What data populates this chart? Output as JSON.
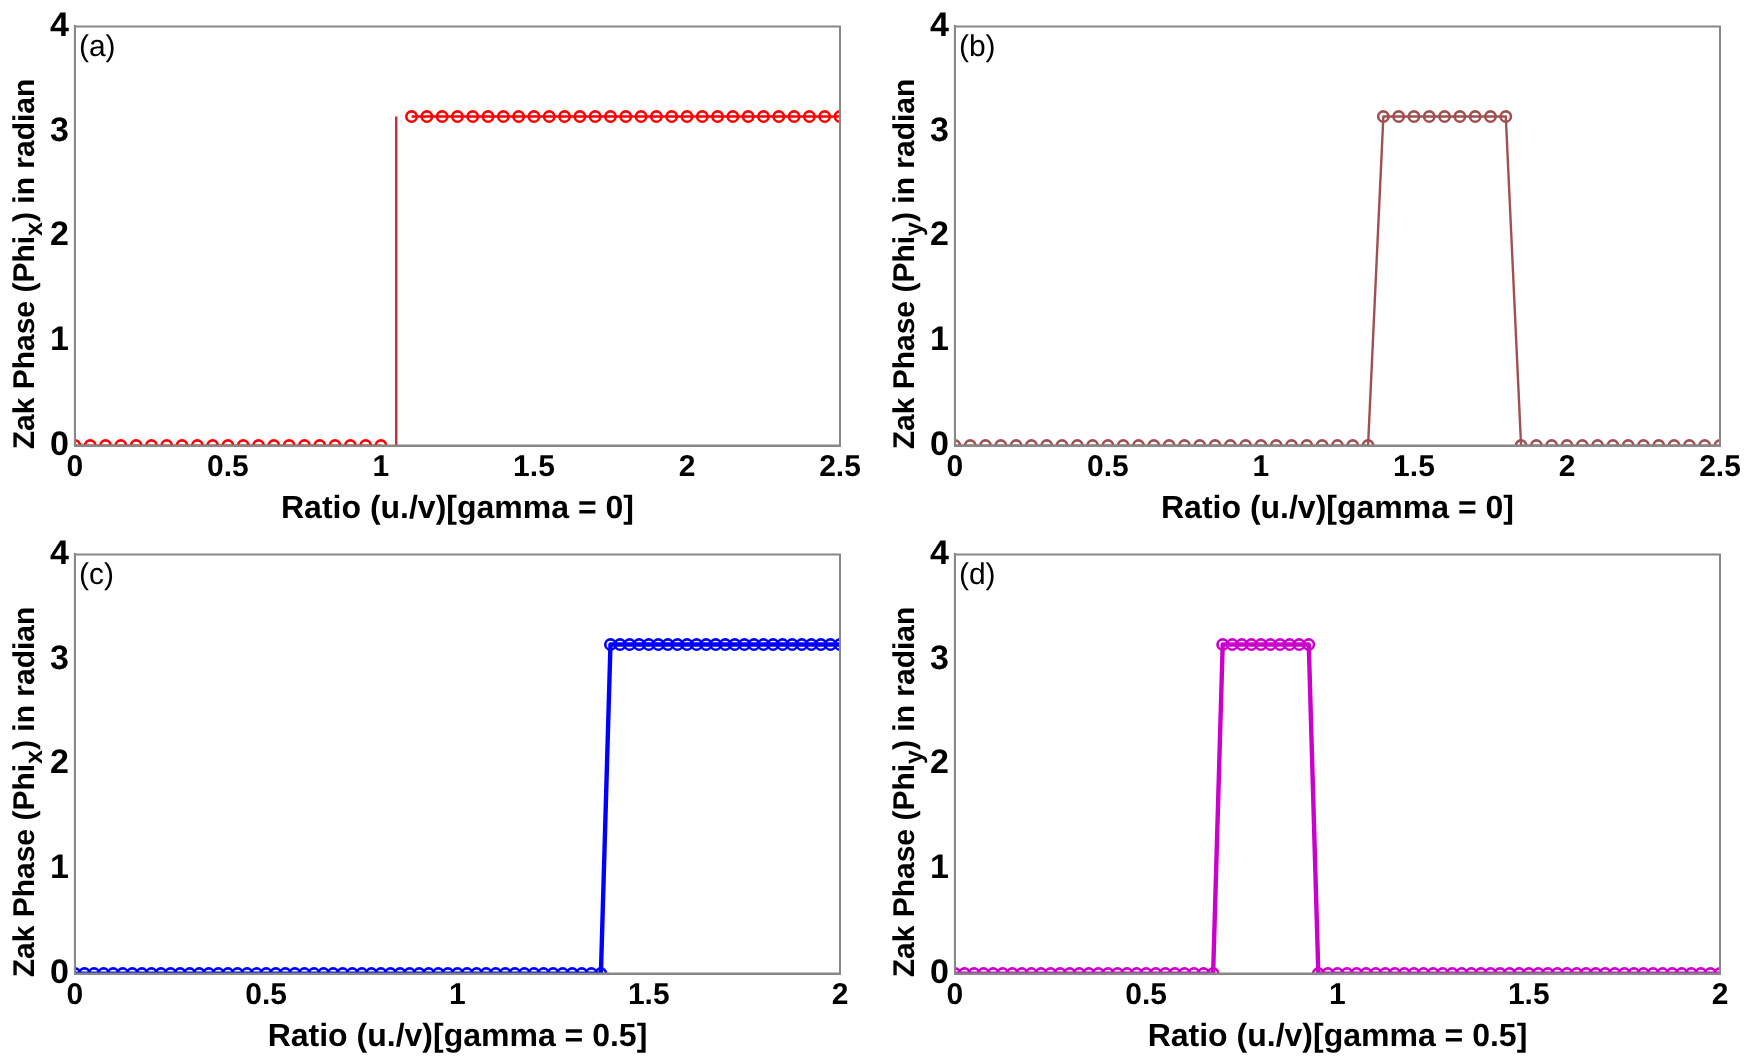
{
  "chart_data": [
    {
      "type": "line",
      "xlabel": "Ratio (u./v)[gamma = 0]",
      "ylabel": "Zak Phase (Phi$_{x}$) in radian",
      "annotations": [
        "(a)"
      ],
      "grid": false,
      "legend": false,
      "xlim": [
        0,
        2.5
      ],
      "xticks": [
        0,
        0.5,
        1,
        1.5,
        2,
        2.5
      ],
      "ylim": [
        0,
        4
      ],
      "yticks": [
        0,
        1,
        2,
        3,
        4
      ],
      "x": [
        0,
        0.05,
        0.1,
        0.15,
        0.2,
        0.25,
        0.3,
        0.35,
        0.4,
        0.45,
        0.5,
        0.55,
        0.6,
        0.65,
        0.7,
        0.75,
        0.8,
        0.85,
        0.9,
        0.95,
        1,
        1.05,
        1.1,
        1.15,
        1.2,
        1.25,
        1.3,
        1.35,
        1.4,
        1.45,
        1.5,
        1.55,
        1.6,
        1.65,
        1.7,
        1.75,
        1.8,
        1.85,
        1.9,
        1.95,
        2,
        2.05,
        2.1,
        2.15,
        2.2,
        2.25,
        2.3,
        2.35,
        2.4,
        2.45,
        2.5
      ],
      "series": [
        {
          "color": "#ff0000",
          "marker": "circle",
          "line_style": "solid",
          "values": [
            0,
            0,
            0,
            0,
            0,
            0,
            0,
            0,
            0,
            0,
            0,
            0,
            0,
            0,
            0,
            0,
            0,
            0,
            0,
            0,
            0,
            null,
            3.14,
            3.14,
            3.14,
            3.14,
            3.14,
            3.14,
            3.14,
            3.14,
            3.14,
            3.14,
            3.14,
            3.14,
            3.14,
            3.14,
            3.14,
            3.14,
            3.14,
            3.14,
            3.14,
            3.14,
            3.14,
            3.14,
            3.14,
            3.14,
            3.14,
            3.14,
            3.14,
            3.14,
            3.14
          ]
        },
        {
          "color": "#c03030",
          "marker": "none",
          "line_style": "solid",
          "x": [
            1.05,
            1.05
          ],
          "values": [
            0,
            3.14
          ]
        }
      ]
    },
    {
      "type": "line",
      "xlabel": "Ratio (u./v)[gamma = 0]",
      "ylabel": "Zak Phase (Phi$_{y}$) in radian",
      "annotations": [
        "(b)"
      ],
      "grid": false,
      "legend": false,
      "xlim": [
        0,
        2.5
      ],
      "xticks": [
        0,
        0.5,
        1,
        1.5,
        2,
        2.5
      ],
      "ylim": [
        0,
        4
      ],
      "yticks": [
        0,
        1,
        2,
        3,
        4
      ],
      "x": [
        0,
        0.05,
        0.1,
        0.15,
        0.2,
        0.25,
        0.3,
        0.35,
        0.4,
        0.45,
        0.5,
        0.55,
        0.6,
        0.65,
        0.7,
        0.75,
        0.8,
        0.85,
        0.9,
        0.95,
        1,
        1.05,
        1.1,
        1.15,
        1.2,
        1.25,
        1.3,
        1.35,
        1.4,
        1.45,
        1.5,
        1.55,
        1.6,
        1.65,
        1.7,
        1.75,
        1.8,
        1.85,
        1.9,
        1.95,
        2,
        2.05,
        2.1,
        2.15,
        2.2,
        2.25,
        2.3,
        2.35,
        2.4,
        2.45,
        2.5
      ],
      "series": [
        {
          "color": "#a05050",
          "marker": "circle",
          "line_style": "solid",
          "values": [
            0,
            0,
            0,
            0,
            0,
            0,
            0,
            0,
            0,
            0,
            0,
            0,
            0,
            0,
            0,
            0,
            0,
            0,
            0,
            0,
            0,
            0,
            0,
            0,
            0,
            0,
            0,
            0,
            3.14,
            3.14,
            3.14,
            3.14,
            3.14,
            3.14,
            3.14,
            3.14,
            3.14,
            0,
            0,
            0,
            0,
            0,
            0,
            0,
            0,
            0,
            0,
            0,
            0,
            0,
            0
          ]
        }
      ]
    },
    {
      "type": "line",
      "xlabel": "Ratio (u./v)[gamma = 0.5]",
      "ylabel": "Zak Phase (Phi$_{x}$) in radian",
      "annotations": [
        "(c)"
      ],
      "grid": false,
      "legend": false,
      "xlim": [
        0,
        2
      ],
      "xticks": [
        0,
        0.5,
        1,
        1.5,
        2
      ],
      "ylim": [
        0,
        4
      ],
      "yticks": [
        0,
        1,
        2,
        3,
        4
      ],
      "x": [
        0,
        0.025,
        0.05,
        0.075,
        0.1,
        0.125,
        0.15,
        0.175,
        0.2,
        0.225,
        0.25,
        0.275,
        0.3,
        0.325,
        0.35,
        0.375,
        0.4,
        0.425,
        0.45,
        0.475,
        0.5,
        0.525,
        0.55,
        0.575,
        0.6,
        0.625,
        0.65,
        0.675,
        0.7,
        0.725,
        0.75,
        0.775,
        0.8,
        0.825,
        0.85,
        0.875,
        0.9,
        0.925,
        0.95,
        0.975,
        1,
        1.025,
        1.05,
        1.075,
        1.1,
        1.125,
        1.15,
        1.175,
        1.2,
        1.225,
        1.25,
        1.275,
        1.3,
        1.325,
        1.35,
        1.375,
        1.4,
        1.425,
        1.45,
        1.475,
        1.5,
        1.525,
        1.55,
        1.575,
        1.6,
        1.625,
        1.65,
        1.675,
        1.7,
        1.725,
        1.75,
        1.775,
        1.8,
        1.825,
        1.85,
        1.875,
        1.9,
        1.925,
        1.95,
        1.975,
        2
      ],
      "series": [
        {
          "color": "#0000ff",
          "marker": "circle",
          "line_style": "solid",
          "values": [
            0,
            0,
            0,
            0,
            0,
            0,
            0,
            0,
            0,
            0,
            0,
            0,
            0,
            0,
            0,
            0,
            0,
            0,
            0,
            0,
            0,
            0,
            0,
            0,
            0,
            0,
            0,
            0,
            0,
            0,
            0,
            0,
            0,
            0,
            0,
            0,
            0,
            0,
            0,
            0,
            0,
            0,
            0,
            0,
            0,
            0,
            0,
            0,
            0,
            0,
            0,
            0,
            0,
            0,
            0,
            0,
            3.14,
            3.14,
            3.14,
            3.14,
            3.14,
            3.14,
            3.14,
            3.14,
            3.14,
            3.14,
            3.14,
            3.14,
            3.14,
            3.14,
            3.14,
            3.14,
            3.14,
            3.14,
            3.14,
            3.14,
            3.14,
            3.14,
            3.14,
            3.14,
            3.14
          ]
        }
      ]
    },
    {
      "type": "line",
      "xlabel": "Ratio (u./v)[gamma = 0.5]",
      "ylabel": "Zak Phase (Phi$_{y}$) in radian",
      "annotations": [
        "(d)"
      ],
      "grid": false,
      "legend": false,
      "xlim": [
        0,
        2
      ],
      "xticks": [
        0,
        0.5,
        1,
        1.5,
        2
      ],
      "ylim": [
        0,
        4
      ],
      "yticks": [
        0,
        1,
        2,
        3,
        4
      ],
      "x": [
        0,
        0.025,
        0.05,
        0.075,
        0.1,
        0.125,
        0.15,
        0.175,
        0.2,
        0.225,
        0.25,
        0.275,
        0.3,
        0.325,
        0.35,
        0.375,
        0.4,
        0.425,
        0.45,
        0.475,
        0.5,
        0.525,
        0.55,
        0.575,
        0.6,
        0.625,
        0.65,
        0.675,
        0.7,
        0.725,
        0.75,
        0.775,
        0.8,
        0.825,
        0.85,
        0.875,
        0.9,
        0.925,
        0.95,
        0.975,
        1,
        1.025,
        1.05,
        1.075,
        1.1,
        1.125,
        1.15,
        1.175,
        1.2,
        1.225,
        1.25,
        1.275,
        1.3,
        1.325,
        1.35,
        1.375,
        1.4,
        1.425,
        1.45,
        1.475,
        1.5,
        1.525,
        1.55,
        1.575,
        1.6,
        1.625,
        1.65,
        1.675,
        1.7,
        1.725,
        1.75,
        1.775,
        1.8,
        1.825,
        1.85,
        1.875,
        1.9,
        1.925,
        1.95,
        1.975,
        2
      ],
      "series": [
        {
          "color": "#cc00cc",
          "marker": "circle",
          "line_style": "solid",
          "values": [
            0,
            0,
            0,
            0,
            0,
            0,
            0,
            0,
            0,
            0,
            0,
            0,
            0,
            0,
            0,
            0,
            0,
            0,
            0,
            0,
            0,
            0,
            0,
            0,
            0,
            0,
            0,
            0,
            3.14,
            3.14,
            3.14,
            3.14,
            3.14,
            3.14,
            3.14,
            3.14,
            3.14,
            3.14,
            0,
            0,
            0,
            0,
            0,
            0,
            0,
            0,
            0,
            0,
            0,
            0,
            0,
            0,
            0,
            0,
            0,
            0,
            0,
            0,
            0,
            0,
            0,
            0,
            0,
            0,
            0,
            0,
            0,
            0,
            0,
            0,
            0,
            0,
            0,
            0,
            0,
            0,
            0,
            0,
            0,
            0,
            0
          ]
        }
      ]
    }
  ]
}
